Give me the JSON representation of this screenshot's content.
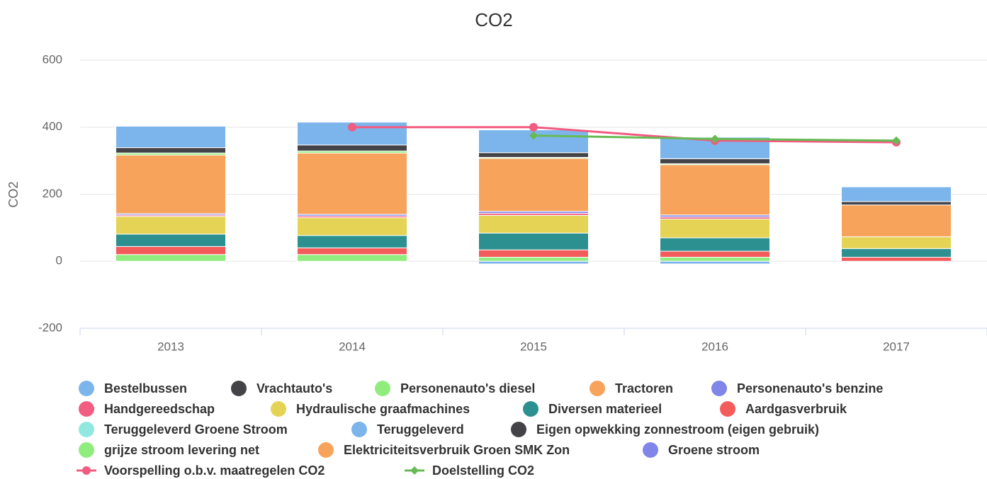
{
  "chart_data": {
    "type": "stacked-bar-line",
    "title": "CO2",
    "y_label": "CO2",
    "categories": [
      "2013",
      "2014",
      "2015",
      "2016",
      "2017"
    ],
    "ylim": [
      -200,
      600
    ],
    "yticks": [
      -200,
      0,
      200,
      400,
      600
    ],
    "grid": true,
    "series": [
      {
        "name": "Bestelbussen",
        "color": "#7cb5ec",
        "values": [
          64,
          68,
          68,
          64,
          44
        ]
      },
      {
        "name": "Vrachtauto's",
        "color": "#434348",
        "values": [
          16,
          18,
          14,
          15,
          10
        ]
      },
      {
        "name": "Personenauto's diesel",
        "color": "#90ed7d",
        "values": [
          6,
          6,
          3,
          3,
          null
        ]
      },
      {
        "name": "Tractoren",
        "color": "#f7a35c",
        "values": [
          175,
          183,
          158,
          150,
          95
        ]
      },
      {
        "name": "Personenauto's benzine",
        "color": "#8085e9",
        "values": [
          4,
          5,
          6,
          6,
          null
        ]
      },
      {
        "name": "Handgereedschap",
        "color": "#f15c80",
        "values": [
          4,
          5,
          6,
          6,
          null
        ]
      },
      {
        "name": "Hydraulische graafmachines",
        "color": "#e4d354",
        "values": [
          53,
          53,
          53,
          56,
          35
        ]
      },
      {
        "name": "Diversen materieel",
        "color": "#2b908f",
        "values": [
          37,
          37,
          50,
          40,
          26
        ]
      },
      {
        "name": "Aardgasverbruik",
        "color": "#f45b5b",
        "values": [
          24,
          20,
          22,
          18,
          12
        ]
      },
      {
        "name": "Teruggeleverd Groene Stroom",
        "color": "#91e8e1",
        "values": [
          null,
          null,
          null,
          null,
          null
        ]
      },
      {
        "name": "Teruggeleverd",
        "color": "#7cb5ec",
        "values": [
          null,
          null,
          -8,
          -8,
          null
        ]
      },
      {
        "name": "Eigen opwekking zonnestroom (eigen gebruik)",
        "color": "#434348",
        "values": [
          null,
          null,
          null,
          null,
          null
        ]
      },
      {
        "name": "grijze stroom levering net",
        "color": "#90ed7d",
        "values": [
          20,
          20,
          12,
          12,
          null
        ]
      },
      {
        "name": "Elektriciteitsverbruik Groen SMK Zon",
        "color": "#f7a35c",
        "values": [
          null,
          null,
          null,
          null,
          null
        ]
      },
      {
        "name": "Groene stroom",
        "color": "#8085e9",
        "values": [
          null,
          null,
          null,
          null,
          null
        ]
      },
      {
        "name": "Voorspelling o.b.v. maatregelen CO2",
        "type": "line",
        "marker": "circle",
        "color": "#f15c80",
        "values": [
          null,
          400,
          400,
          360,
          355
        ]
      },
      {
        "name": "Doelstelling CO2",
        "type": "line",
        "marker": "diamond",
        "color": "#66bb55",
        "values": [
          null,
          null,
          375,
          365,
          360
        ]
      }
    ]
  }
}
